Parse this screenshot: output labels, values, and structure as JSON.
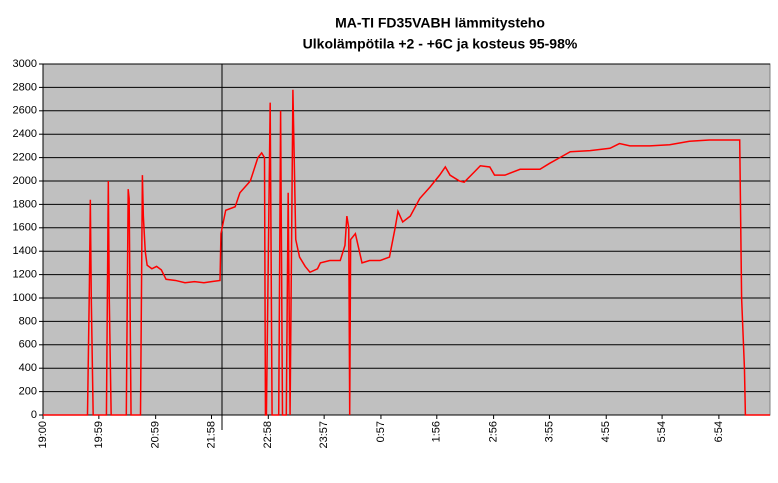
{
  "chart_data": {
    "type": "line",
    "title": "MA-TI FD35VABH lämmitysteho",
    "subtitle": "Ulkolämpötila  +2 - +6C ja kosteus 95-98%",
    "x": [
      0,
      47,
      49,
      50,
      51,
      53,
      67,
      69,
      70,
      72,
      88,
      90,
      91,
      93,
      103,
      105,
      106,
      108,
      110,
      115,
      120,
      125,
      130,
      140,
      150,
      160,
      170,
      178,
      187,
      188,
      193,
      203,
      208,
      219,
      227,
      231,
      234,
      235,
      236,
      240,
      242,
      249,
      251,
      253,
      257,
      259,
      261,
      264,
      267,
      271,
      277,
      282,
      290,
      293,
      303,
      314,
      319,
      321,
      323,
      324,
      325,
      330,
      337,
      345,
      356,
      366,
      372,
      375,
      380,
      388,
      398,
      409,
      419,
      425,
      430,
      440,
      445,
      456,
      462,
      472,
      477,
      488,
      504,
      525,
      535,
      546,
      557,
      578,
      599,
      609,
      620,
      641,
      662,
      683,
      704,
      736,
      738,
      741,
      742,
      768
    ],
    "values": [
      0,
      0,
      1100,
      1840,
      1000,
      0,
      0,
      2000,
      1000,
      0,
      0,
      1930,
      1850,
      0,
      0,
      2050,
      1700,
      1400,
      1280,
      1250,
      1270,
      1240,
      1160,
      1150,
      1130,
      1140,
      1130,
      1140,
      1150,
      1550,
      1750,
      1780,
      1900,
      2000,
      2200,
      2240,
      2200,
      0,
      0,
      2670,
      0,
      0,
      2600,
      0,
      0,
      1900,
      0,
      2780,
      1500,
      1350,
      1270,
      1220,
      1250,
      1300,
      1320,
      1320,
      1450,
      1700,
      1600,
      0,
      1500,
      1550,
      1300,
      1320,
      1320,
      1350,
      1600,
      1740,
      1650,
      1700,
      1850,
      1950,
      2050,
      2120,
      2050,
      2000,
      1990,
      2080,
      2130,
      2120,
      2050,
      2050,
      2100,
      2100,
      2150,
      2200,
      2250,
      2260,
      2280,
      2320,
      2300,
      2300,
      2310,
      2340,
      2350,
      2350,
      1000,
      400,
      0,
      0
    ],
    "color": "#ff0000",
    "xlim": [
      0,
      768
    ],
    "xticks": [
      {
        "value": 0,
        "label": "19:00"
      },
      {
        "value": 59,
        "label": "19:59"
      },
      {
        "value": 119,
        "label": "20:59"
      },
      {
        "value": 178,
        "label": "21:58"
      },
      {
        "value": 238,
        "label": "22:58"
      },
      {
        "value": 297,
        "label": "23:57"
      },
      {
        "value": 357,
        "label": "0:57"
      },
      {
        "value": 416,
        "label": "1:56"
      },
      {
        "value": 476,
        "label": "2:56"
      },
      {
        "value": 535,
        "label": "3:55"
      },
      {
        "value": 595,
        "label": "4:55"
      },
      {
        "value": 654,
        "label": "5:54"
      },
      {
        "value": 714,
        "label": "6:54"
      }
    ],
    "ylim": [
      0,
      3000
    ],
    "yticks": [
      0,
      200,
      400,
      600,
      800,
      1000,
      1200,
      1400,
      1600,
      1800,
      2000,
      2200,
      2400,
      2600,
      2800,
      3000
    ],
    "grid": true
  }
}
